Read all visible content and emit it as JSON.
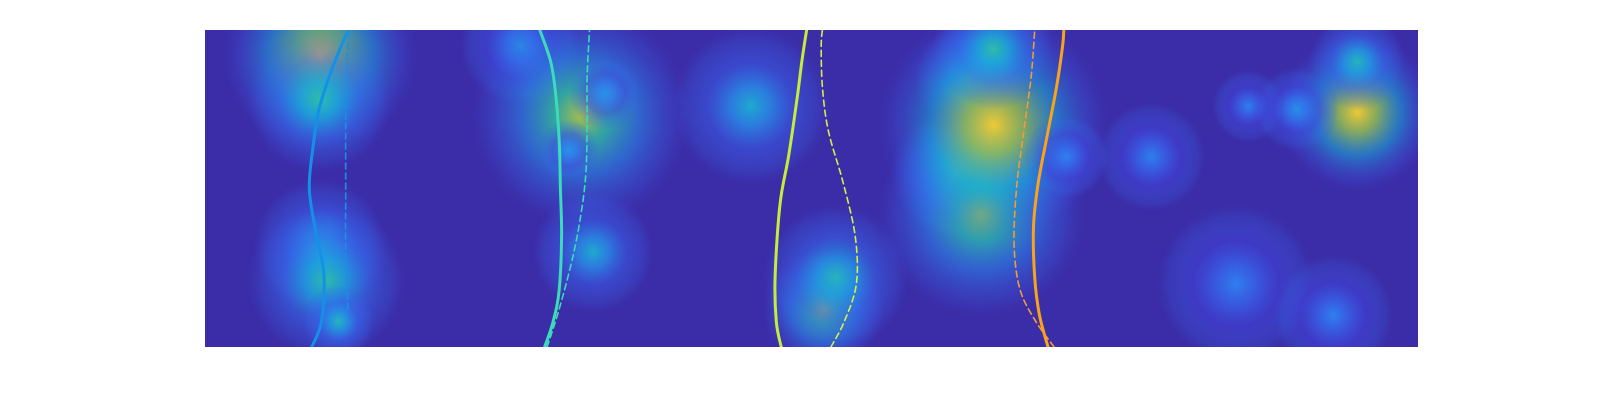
{
  "chart_data": {
    "type": "heatmap",
    "colormap": "parula",
    "title": "",
    "xlabel": "",
    "ylabel": "",
    "axes_visible": false,
    "grid": false,
    "legend": "none",
    "background_color": "#3b2da7",
    "colorscale": [
      "#3e26a8",
      "#4145e1",
      "#2f7ff6",
      "#18aeda",
      "#32c39a",
      "#98c74b",
      "#f3ba3c",
      "#f9dd28"
    ],
    "xlim": [
      0,
      1
    ],
    "ylim": [
      0,
      1
    ],
    "blobs": [
      {
        "x": 0.095,
        "y": 0.08,
        "r": 0.16,
        "intensity": 0.88
      },
      {
        "x": 0.094,
        "y": 0.22,
        "r": 0.12,
        "intensity": 0.55
      },
      {
        "x": 0.095,
        "y": 0.68,
        "r": 0.11,
        "intensity": 0.45
      },
      {
        "x": 0.1,
        "y": 0.79,
        "r": 0.13,
        "intensity": 0.55
      },
      {
        "x": 0.11,
        "y": 0.92,
        "r": 0.06,
        "intensity": 0.5
      },
      {
        "x": 0.26,
        "y": 0.05,
        "r": 0.1,
        "intensity": 0.35
      },
      {
        "x": 0.31,
        "y": 0.27,
        "r": 0.18,
        "intensity": 0.75
      },
      {
        "x": 0.33,
        "y": 0.2,
        "r": 0.06,
        "intensity": 0.35
      },
      {
        "x": 0.3,
        "y": 0.38,
        "r": 0.05,
        "intensity": 0.35
      },
      {
        "x": 0.32,
        "y": 0.7,
        "r": 0.1,
        "intensity": 0.45
      },
      {
        "x": 0.45,
        "y": 0.24,
        "r": 0.13,
        "intensity": 0.45
      },
      {
        "x": 0.51,
        "y": 0.88,
        "r": 0.1,
        "intensity": 0.75
      },
      {
        "x": 0.52,
        "y": 0.78,
        "r": 0.12,
        "intensity": 0.5
      },
      {
        "x": 0.62,
        "y": 0.45,
        "r": 0.11,
        "intensity": 0.65
      },
      {
        "x": 0.63,
        "y": 0.15,
        "r": 0.09,
        "intensity": 0.55
      },
      {
        "x": 0.64,
        "y": 0.58,
        "r": 0.17,
        "intensity": 0.7
      },
      {
        "x": 0.65,
        "y": 0.3,
        "r": 0.19,
        "intensity": 0.95
      },
      {
        "x": 0.65,
        "y": 0.06,
        "r": 0.1,
        "intensity": 0.55
      },
      {
        "x": 0.71,
        "y": 0.4,
        "r": 0.07,
        "intensity": 0.3
      },
      {
        "x": 0.78,
        "y": 0.4,
        "r": 0.09,
        "intensity": 0.3
      },
      {
        "x": 0.85,
        "y": 0.8,
        "r": 0.13,
        "intensity": 0.3
      },
      {
        "x": 0.86,
        "y": 0.24,
        "r": 0.06,
        "intensity": 0.3
      },
      {
        "x": 0.95,
        "y": 0.26,
        "r": 0.13,
        "intensity": 0.95
      },
      {
        "x": 0.95,
        "y": 0.1,
        "r": 0.08,
        "intensity": 0.5
      },
      {
        "x": 0.93,
        "y": 0.9,
        "r": 0.1,
        "intensity": 0.3
      },
      {
        "x": 0.9,
        "y": 0.25,
        "r": 0.07,
        "intensity": 0.35
      }
    ],
    "series": [
      {
        "color": "#1391e8",
        "style": "solid",
        "points": [
          [
            0.088,
            1.0
          ],
          [
            0.096,
            0.92
          ],
          [
            0.098,
            0.77
          ],
          [
            0.091,
            0.63
          ],
          [
            0.086,
            0.5
          ],
          [
            0.089,
            0.37
          ],
          [
            0.094,
            0.25
          ],
          [
            0.105,
            0.12
          ],
          [
            0.118,
            0.0
          ]
        ]
      },
      {
        "color": "#1c8fe2",
        "style": "dashed",
        "points": [
          [
            0.118,
            0.88
          ],
          [
            0.116,
            0.7
          ],
          [
            0.116,
            0.5
          ],
          [
            0.116,
            0.3
          ],
          [
            0.117,
            0.1
          ],
          [
            0.119,
            0.0
          ]
        ]
      },
      {
        "color": "#3cdbb9",
        "style": "solid",
        "points": [
          [
            0.28,
            1.0
          ],
          [
            0.287,
            0.92
          ],
          [
            0.292,
            0.82
          ],
          [
            0.294,
            0.65
          ],
          [
            0.293,
            0.5
          ],
          [
            0.292,
            0.35
          ],
          [
            0.289,
            0.2
          ],
          [
            0.285,
            0.1
          ],
          [
            0.276,
            0.0
          ]
        ]
      },
      {
        "color": "#3cdbb9",
        "style": "dashed",
        "points": [
          [
            0.282,
            1.0
          ],
          [
            0.292,
            0.88
          ],
          [
            0.303,
            0.72
          ],
          [
            0.31,
            0.58
          ],
          [
            0.314,
            0.45
          ],
          [
            0.315,
            0.3
          ],
          [
            0.315,
            0.15
          ],
          [
            0.317,
            0.0
          ]
        ]
      },
      {
        "color": "#c5eb3c",
        "style": "solid",
        "points": [
          [
            0.475,
            1.0
          ],
          [
            0.471,
            0.92
          ],
          [
            0.47,
            0.78
          ],
          [
            0.474,
            0.55
          ],
          [
            0.481,
            0.4
          ],
          [
            0.488,
            0.22
          ],
          [
            0.492,
            0.1
          ],
          [
            0.496,
            0.0
          ]
        ]
      },
      {
        "color": "#d6ee4a",
        "style": "dashed",
        "points": [
          [
            0.516,
            1.0
          ],
          [
            0.527,
            0.92
          ],
          [
            0.537,
            0.8
          ],
          [
            0.536,
            0.65
          ],
          [
            0.526,
            0.48
          ],
          [
            0.514,
            0.32
          ],
          [
            0.509,
            0.18
          ],
          [
            0.508,
            0.05
          ],
          [
            0.509,
            0.0
          ]
        ]
      },
      {
        "color": "#f9a21c",
        "style": "solid",
        "points": [
          [
            0.695,
            1.0
          ],
          [
            0.688,
            0.9
          ],
          [
            0.684,
            0.78
          ],
          [
            0.683,
            0.62
          ],
          [
            0.687,
            0.48
          ],
          [
            0.695,
            0.32
          ],
          [
            0.702,
            0.18
          ],
          [
            0.707,
            0.05
          ],
          [
            0.708,
            0.0
          ]
        ]
      },
      {
        "color": "#f69a35",
        "style": "dashed",
        "points": [
          [
            0.7,
            1.0
          ],
          [
            0.685,
            0.92
          ],
          [
            0.672,
            0.82
          ],
          [
            0.667,
            0.68
          ],
          [
            0.669,
            0.5
          ],
          [
            0.675,
            0.32
          ],
          [
            0.681,
            0.15
          ],
          [
            0.684,
            0.0
          ]
        ]
      }
    ]
  }
}
